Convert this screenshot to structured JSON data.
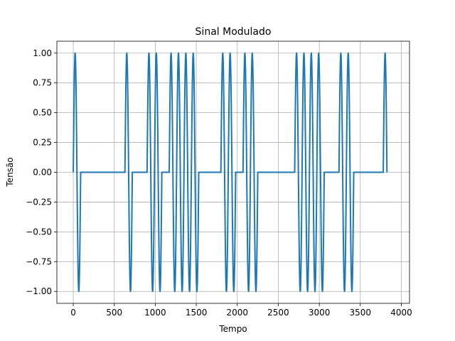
{
  "chart_data": {
    "type": "line",
    "title": "Sinal Modulado",
    "xlabel": "Tempo",
    "ylabel": "Tensão",
    "xlim": [
      -200,
      4100
    ],
    "ylim": [
      -1.1,
      1.1
    ],
    "xticks": [
      0,
      500,
      1000,
      1500,
      2000,
      2500,
      3000,
      3500,
      4000
    ],
    "yticks": [
      -1.0,
      -0.75,
      -0.5,
      -0.25,
      0.0,
      0.25,
      0.5,
      0.75,
      1.0
    ],
    "xtick_labels": [
      "0",
      "500",
      "1000",
      "1500",
      "2000",
      "2500",
      "3000",
      "3500",
      "4000"
    ],
    "ytick_labels": [
      "−1.00",
      "−0.75",
      "−0.50",
      "−0.25",
      "0.00",
      "0.25",
      "0.50",
      "0.75",
      "1.00"
    ],
    "grid": true,
    "series": [
      {
        "color": "#1f77b4",
        "bits": [
          1,
          0,
          0,
          0,
          0,
          0,
          0,
          1,
          0,
          0,
          1,
          1,
          0,
          1,
          1,
          1,
          1,
          0,
          0,
          0,
          1,
          1,
          0,
          1,
          1,
          0,
          0,
          0,
          0,
          0,
          1,
          1,
          1,
          1,
          0,
          0,
          1,
          1,
          0,
          0,
          0,
          0,
          1
        ],
        "bit_duration": 90,
        "cycles_per_bit": 1
      }
    ]
  }
}
